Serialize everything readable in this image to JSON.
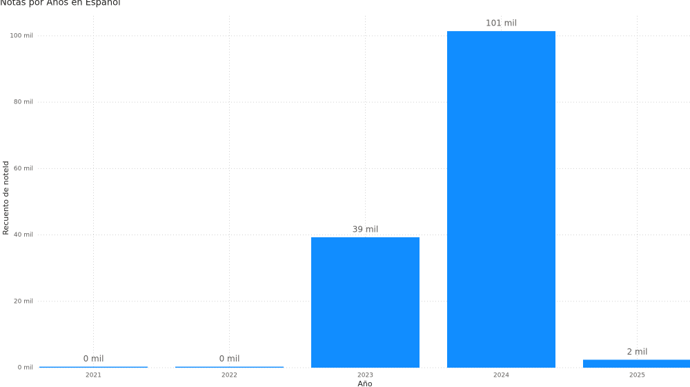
{
  "chart_data": {
    "type": "bar",
    "title": "Notas por Años en Español",
    "x_label": "Año",
    "y_label": "Recuento de noteId",
    "categories": [
      "2021",
      "2022",
      "2023",
      "2024",
      "2025"
    ],
    "values": [
      0.3,
      0.3,
      39.3,
      101.4,
      2.4
    ],
    "value_labels": [
      "0 mil",
      "0 mil",
      "39 mil",
      "101 mil",
      "2 mil"
    ],
    "color": "#118dff",
    "ylim": [
      0,
      106
    ],
    "yticks": [
      {
        "value": 0,
        "label": "0 mil"
      },
      {
        "value": 20,
        "label": "20 mil"
      },
      {
        "value": 40,
        "label": "40 mil"
      },
      {
        "value": 60,
        "label": "60 mil"
      },
      {
        "value": 80,
        "label": "80 mil"
      },
      {
        "value": 100,
        "label": "100 mil"
      }
    ],
    "grid": true
  }
}
